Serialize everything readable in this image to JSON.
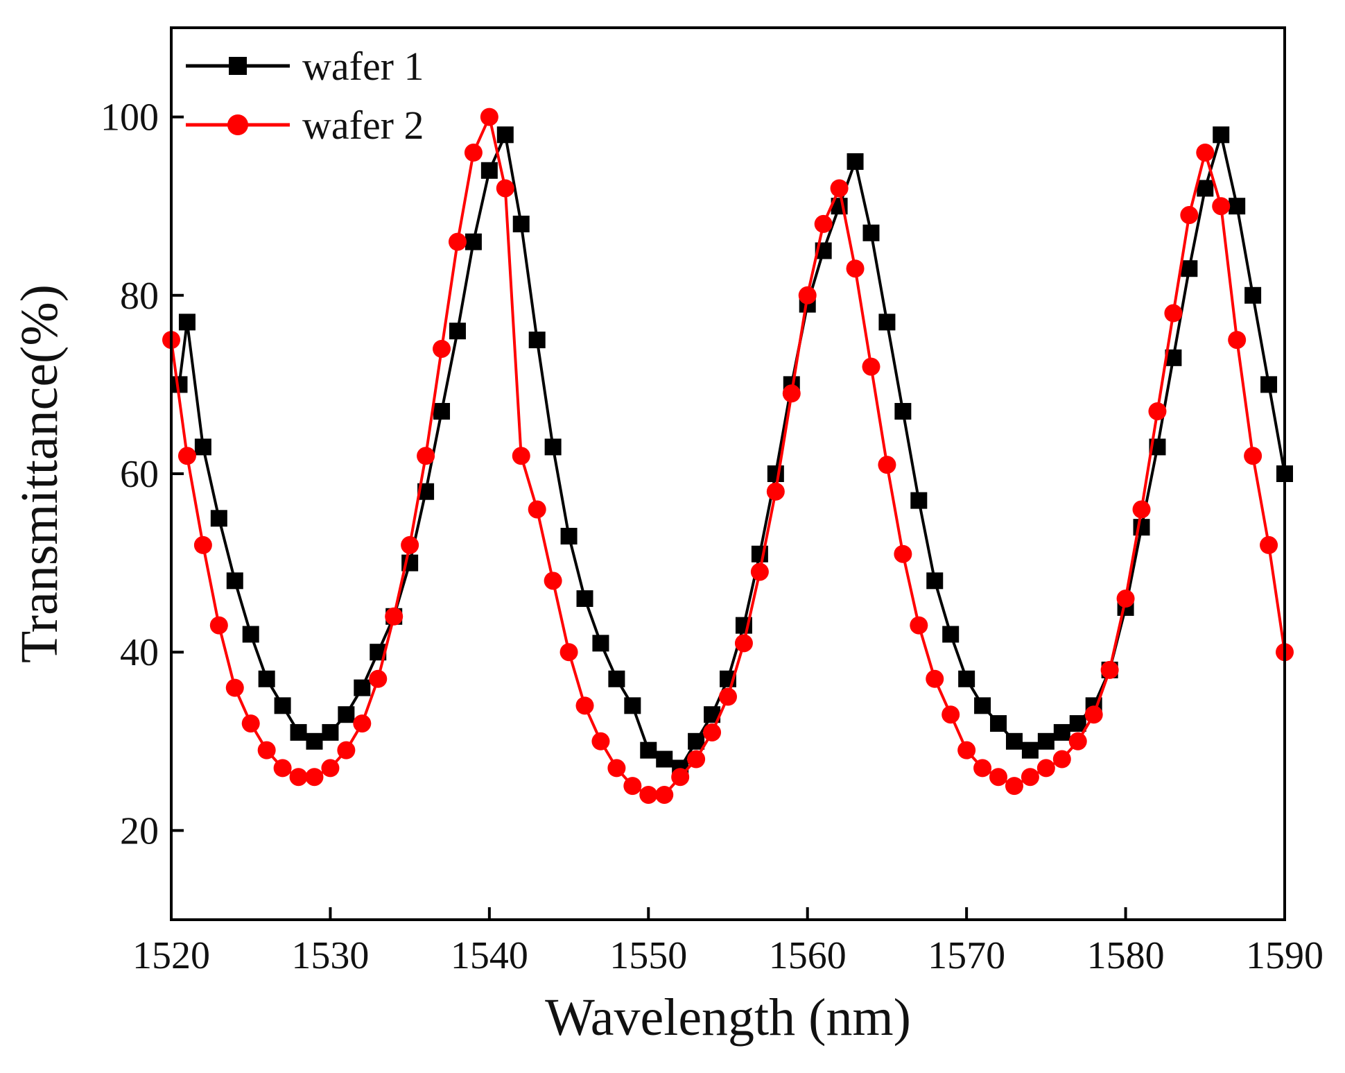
{
  "chart_data": {
    "type": "line",
    "title": "",
    "xlabel": "Wavelength (nm)",
    "ylabel": "Transmittance(%)",
    "xlim": [
      1520,
      1590
    ],
    "ylim": [
      10,
      110
    ],
    "xticks": [
      1520,
      1530,
      1540,
      1550,
      1560,
      1570,
      1580,
      1590
    ],
    "xtick_labels": [
      "1520",
      "1530",
      "1540",
      "1550",
      "1560",
      "1570",
      "1580",
      "1590"
    ],
    "yticks": [
      20,
      40,
      60,
      80,
      100
    ],
    "ytick_labels": [
      "20",
      "40",
      "60",
      "80",
      "100"
    ],
    "grid": false,
    "legend_position": "top-left",
    "series": [
      {
        "name": "wafer 1",
        "color": "#000000",
        "marker": "square",
        "x": [
          1520.5,
          1521,
          1522,
          1523,
          1524,
          1525,
          1526,
          1527,
          1528,
          1529,
          1530,
          1531,
          1532,
          1533,
          1534,
          1535,
          1536,
          1537,
          1538,
          1539,
          1540,
          1541,
          1542,
          1543,
          1544,
          1545,
          1546,
          1547,
          1548,
          1549,
          1550,
          1551,
          1552,
          1553,
          1554,
          1555,
          1556,
          1557,
          1558,
          1559,
          1560,
          1561,
          1562,
          1563,
          1564,
          1565,
          1566,
          1567,
          1568,
          1569,
          1570,
          1571,
          1572,
          1573,
          1574,
          1575,
          1576,
          1577,
          1578,
          1579,
          1580,
          1581,
          1582,
          1583,
          1584,
          1585,
          1586,
          1587,
          1588,
          1589,
          1590
        ],
        "y": [
          70,
          77,
          63,
          55,
          48,
          42,
          37,
          34,
          31,
          30,
          31,
          33,
          36,
          40,
          44,
          50,
          58,
          67,
          76,
          86,
          94,
          98,
          88,
          75,
          63,
          53,
          46,
          41,
          37,
          34,
          29,
          28,
          27,
          30,
          33,
          37,
          43,
          51,
          60,
          70,
          79,
          85,
          90,
          95,
          87,
          77,
          67,
          57,
          48,
          42,
          37,
          34,
          32,
          30,
          29,
          30,
          31,
          32,
          34,
          38,
          45,
          54,
          63,
          73,
          83,
          92,
          98,
          90,
          80,
          70,
          60
        ]
      },
      {
        "name": "wafer 2",
        "color": "#ff0000",
        "marker": "circle",
        "x": [
          1520,
          1521,
          1522,
          1523,
          1524,
          1525,
          1526,
          1527,
          1528,
          1529,
          1530,
          1531,
          1532,
          1533,
          1534,
          1535,
          1536,
          1537,
          1538,
          1539,
          1540,
          1541,
          1542,
          1543,
          1544,
          1545,
          1546,
          1547,
          1548,
          1549,
          1550,
          1551,
          1552,
          1553,
          1554,
          1555,
          1556,
          1557,
          1558,
          1559,
          1560,
          1561,
          1562,
          1563,
          1564,
          1565,
          1566,
          1567,
          1568,
          1569,
          1570,
          1571,
          1572,
          1573,
          1574,
          1575,
          1576,
          1577,
          1578,
          1579,
          1580,
          1581,
          1582,
          1583,
          1584,
          1585,
          1586,
          1587,
          1588,
          1589,
          1590
        ],
        "y": [
          75,
          62,
          52,
          43,
          36,
          32,
          29,
          27,
          26,
          26,
          27,
          29,
          32,
          37,
          44,
          52,
          62,
          74,
          86,
          96,
          100,
          92,
          62,
          56,
          48,
          40,
          34,
          30,
          27,
          25,
          24,
          24,
          26,
          28,
          31,
          35,
          41,
          49,
          58,
          69,
          80,
          88,
          92,
          83,
          72,
          61,
          51,
          43,
          37,
          33,
          29,
          27,
          26,
          25,
          26,
          27,
          28,
          30,
          33,
          38,
          46,
          56,
          67,
          78,
          89,
          96,
          90,
          75,
          62,
          52,
          40
        ]
      }
    ]
  }
}
